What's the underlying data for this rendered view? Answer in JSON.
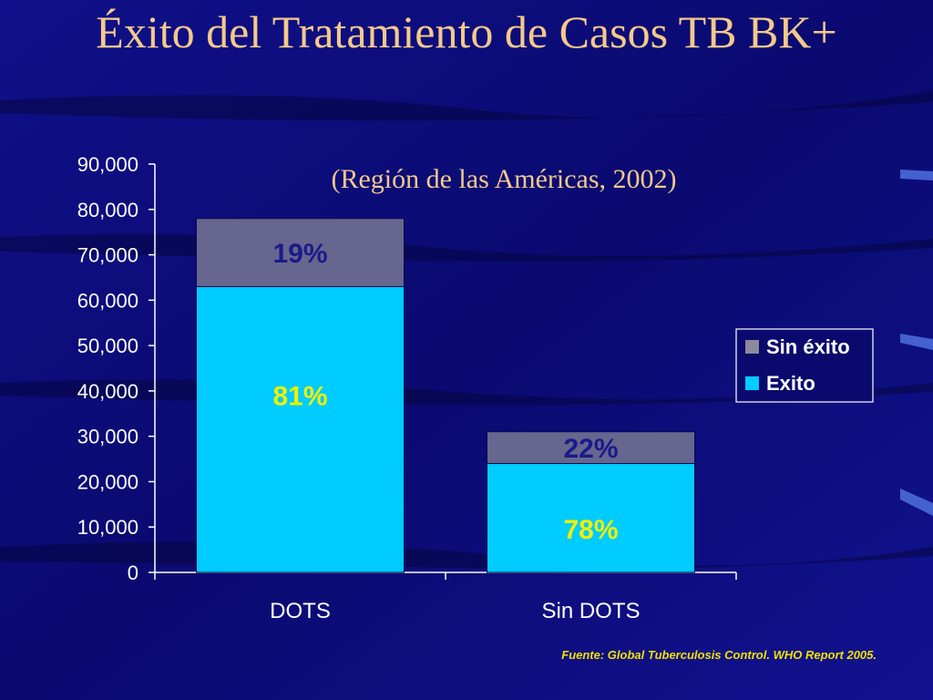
{
  "slide": {
    "title": "Éxito del Tratamiento de Casos TB BK+",
    "source": "Fuente: Global Tuberculosis Control. WHO Report 2005."
  },
  "colors": {
    "background": "#0a0a6e",
    "title": "#f5c98a",
    "exito": "#00ccff",
    "sin_exito": "#66668f",
    "label_exito": "#f0f000",
    "label_sin_exito": "#1a1a8a",
    "axis": "#ffffff"
  },
  "chart_data": {
    "type": "bar",
    "stacked": true,
    "title": "",
    "subtitle": "(Región de las Américas, 2002)",
    "categories": [
      "DOTS",
      "Sin DOTS"
    ],
    "series": [
      {
        "name": "Exito",
        "values": [
          63000,
          24000
        ],
        "labels": [
          "81%",
          "78%"
        ]
      },
      {
        "name": "Sin éxito",
        "values": [
          15000,
          7000
        ],
        "labels": [
          "19%",
          "22%"
        ]
      }
    ],
    "legend_order": [
      "Sin éxito",
      "Exito"
    ],
    "ylim": [
      0,
      90000
    ],
    "yticks": [
      0,
      10000,
      20000,
      30000,
      40000,
      50000,
      60000,
      70000,
      80000,
      90000
    ],
    "ytick_labels": [
      "0",
      "10,000",
      "20,000",
      "30,000",
      "40,000",
      "50,000",
      "60,000",
      "70,000",
      "80,000",
      "90,000"
    ],
    "xlabel": "",
    "ylabel": "",
    "grid": false,
    "legend_position": "right"
  }
}
